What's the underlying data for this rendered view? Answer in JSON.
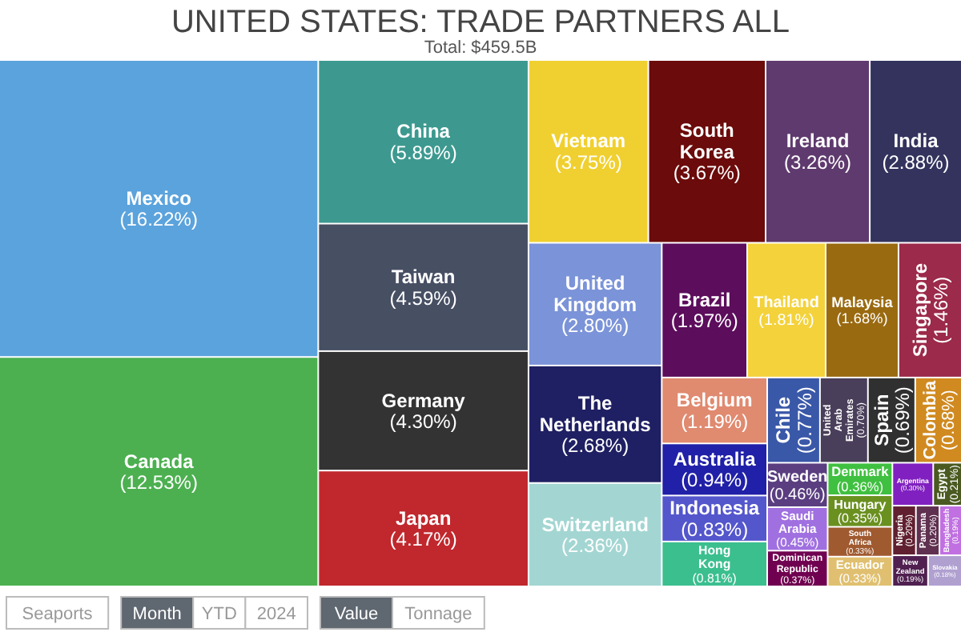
{
  "chart_data": {
    "type": "other",
    "title": "UNITED STATES: TRADE PARTNERS ALL",
    "subtitle": "Total: $459.5B",
    "categories": [
      "Mexico",
      "Canada",
      "China",
      "Taiwan",
      "Germany",
      "Japan",
      "Vietnam",
      "South Korea",
      "Ireland",
      "India",
      "United Kingdom",
      "The Netherlands",
      "Switzerland",
      "Brazil",
      "Thailand",
      "Malaysia",
      "Singapore",
      "Belgium",
      "Australia",
      "Indonesia",
      "Hong Kong",
      "Chile",
      "United Arab Emirates",
      "Spain",
      "Colombia",
      "Sweden",
      "Saudi Arabia",
      "Dominican Republic",
      "Denmark",
      "Hungary",
      "South Africa",
      "Ecuador",
      "Argentina",
      "Egypt",
      "Nigeria",
      "Panama",
      "Bangladesh",
      "New Zealand",
      "Slovakia"
    ],
    "values": [
      16.22,
      12.53,
      5.89,
      4.59,
      4.3,
      4.17,
      3.75,
      3.67,
      3.26,
      2.88,
      2.8,
      2.68,
      2.36,
      1.97,
      1.81,
      1.68,
      1.46,
      1.19,
      0.94,
      0.83,
      0.81,
      0.77,
      0.7,
      0.69,
      0.68,
      0.46,
      0.45,
      0.37,
      0.36,
      0.35,
      0.33,
      0.33,
      0.3,
      0.21,
      0.2,
      0.2,
      0.19,
      0.19,
      0.18
    ],
    "value_labels": [
      "(16.22%)",
      "(12.53%)",
      "(5.89%)",
      "(4.59%)",
      "(4.30%)",
      "(4.17%)",
      "(3.75%)",
      "(3.67%)",
      "(3.26%)",
      "(2.88%)",
      "(2.80%)",
      "(2.68%)",
      "(2.36%)",
      "(1.97%)",
      "(1.81%)",
      "(1.68%)",
      "(1.46%)",
      "(1.19%)",
      "(0.94%)",
      "(0.83%)",
      "(0.81%)",
      "(0.77%)",
      "(0.70%)",
      "(0.69%)",
      "(0.68%)",
      "(0.46%)",
      "(0.45%)",
      "(0.37%)",
      "(0.36%)",
      "(0.35%)",
      "(0.33%)",
      "(0.33%)",
      "(0.30%)",
      "(0.21%)",
      "(0.20%)",
      "(0.20%)",
      "(0.19%)",
      "(0.19%)",
      "(0.18%)"
    ],
    "colors": [
      "#5ba3dc",
      "#4cb050",
      "#3d9990",
      "#474f63",
      "#333333",
      "#c0282d",
      "#f0d030",
      "#6b0b0b",
      "#5f3a6e",
      "#33335e",
      "#7b93d8",
      "#1f1f63",
      "#a3d6d2",
      "#5c0d5c",
      "#f3d23c",
      "#9a6a10",
      "#9c2a4a",
      "#e08a70",
      "#2020a8",
      "#5456cc",
      "#3bbf8f",
      "#3a58a8",
      "#4a3f5a",
      "#303030",
      "#d08a20",
      "#5a3e80",
      "#a070e0",
      "#700050",
      "#40c040",
      "#6a9020",
      "#a05a30",
      "#e0c070",
      "#8020c0",
      "#4a5a20",
      "#602030",
      "#603050",
      "#c070e0",
      "#502050",
      "#b0a0d0"
    ],
    "annotations": [
      "Seaports",
      "Month",
      "YTD",
      "2024",
      "Value",
      "Tonnage"
    ]
  }
}
